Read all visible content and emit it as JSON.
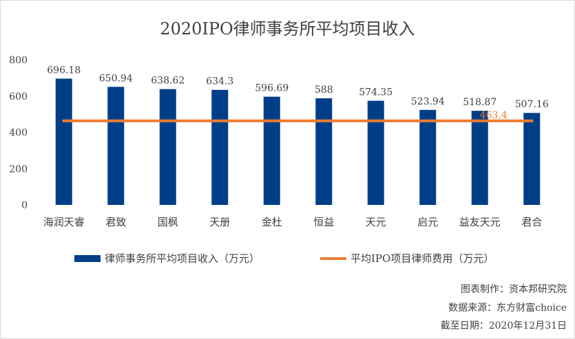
{
  "chart_data": {
    "type": "bar",
    "title": "2020IPO律师事务所平均项目收入",
    "categories": [
      "海润天睿",
      "君致",
      "国枫",
      "天册",
      "金杜",
      "恒益",
      "天元",
      "启元",
      "益友天元",
      "君合"
    ],
    "series": [
      {
        "name": "律师事务所平均项目收入（万元）",
        "type": "bar",
        "color": "#003f87",
        "values": [
          696.18,
          650.94,
          638.62,
          634.3,
          596.69,
          588,
          574.35,
          523.94,
          518.87,
          507.16
        ],
        "labels": [
          "696.18",
          "650.94",
          "638.62",
          "634.3",
          "596.69",
          "588",
          "574.35",
          "523.94",
          "518.87",
          "507.16"
        ]
      },
      {
        "name": "平均IPO项目律师费用（万元）",
        "type": "line",
        "color": "#ed7d31",
        "value": 463.4,
        "label": "463.4"
      }
    ],
    "ylim": [
      0,
      800
    ],
    "yticks": [
      "0",
      "200",
      "400",
      "600",
      "800"
    ],
    "ytick_values": [
      0,
      200,
      400,
      600,
      800
    ],
    "grid": false,
    "legend_position": "bottom"
  },
  "credits": {
    "maker": "图表制作：资本邦研究院",
    "source": "数据来源：东方财富choice",
    "cutoff": "截至日期：2020年12月31日"
  }
}
